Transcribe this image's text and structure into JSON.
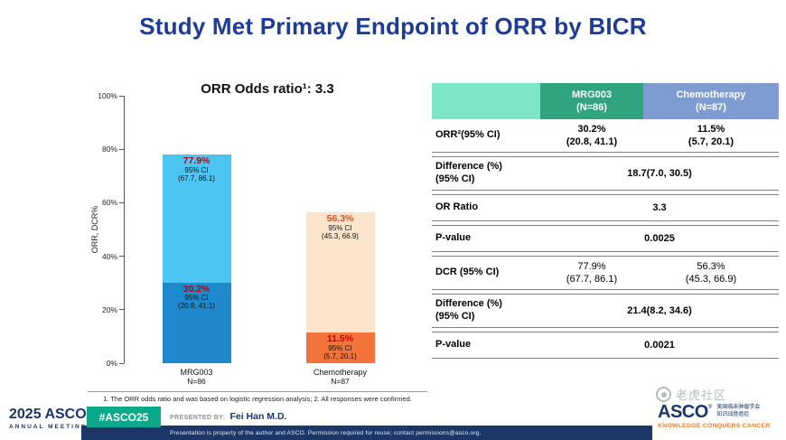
{
  "title": "Study Met Primary Endpoint of ORR by BICR",
  "colors": {
    "title_blue": "#1E3C96",
    "navy": "#1B3667",
    "hashtag_green": "#0CA88A",
    "tagline_orange": "#EE7E23",
    "table_header_label_bg": "#7CE6C6",
    "table_header_mrg003_bg": "#2FA47E",
    "table_header_chemo_bg": "#7E9BD2",
    "pct_red": "#C00000"
  },
  "chart_data": {
    "type": "bar",
    "stacked": true,
    "title": "ORR Odds ratio¹: 3.3",
    "ylabel": "ORR, DCR%",
    "ylim": [
      0,
      100
    ],
    "yticks": [
      "0%",
      "20%",
      "40%",
      "60%",
      "80%",
      "100%"
    ],
    "footnote": "1. The ORR odds ratio and was based on logistic regression analysis; 2. All responses were confirmed.",
    "bars": [
      {
        "category": "MRG003",
        "n_label": "N=86",
        "segments": [
          {
            "name": "ORR",
            "top_value": 30.2,
            "color": "#1E89CC",
            "pct_label": "30.2%",
            "pct_color": "#C00000",
            "ci_label": "95% CI",
            "ci_range": "(20.8, 41.1)"
          },
          {
            "name": "DCR",
            "top_value": 77.9,
            "color": "#4DC5F2",
            "pct_label": "77.9%",
            "pct_color": "#C00000",
            "ci_label": "95% CI",
            "ci_range": "(67.7, 86.1)"
          }
        ]
      },
      {
        "category": "Chemotherapy",
        "n_label": "N=87",
        "segments": [
          {
            "name": "ORR",
            "top_value": 11.5,
            "color": "#F2743B",
            "pct_label": "11.5%",
            "pct_color": "#C00000",
            "ci_label": "95% CI",
            "ci_range": "(5.7, 20.1)"
          },
          {
            "name": "DCR",
            "top_value": 56.3,
            "color": "#FBE4CC",
            "pct_label": "56.3%",
            "pct_color": "#D2512A",
            "ci_label": "95% CI",
            "ci_range": "(45.3, 66.9)"
          }
        ]
      }
    ]
  },
  "table": {
    "header": {
      "col2_line1": "MRG003",
      "col2_line2": "(N=86)",
      "col3_line1": "Chemotherapy",
      "col3_line2": "(N=87)"
    },
    "rows": [
      {
        "label": [
          "ORR²(95% CI)"
        ],
        "values": [
          [
            "30.2%",
            "(20.8, 41.1)"
          ],
          [
            "11.5%",
            "(5.7, 20.1)"
          ]
        ],
        "bold": true
      },
      {
        "label": [
          "Difference (%)",
          "(95% CI)"
        ],
        "span_value": [
          "18.7(7.0, 30.5)"
        ],
        "bold": true
      },
      {
        "label": [
          "OR Ratio"
        ],
        "span_value": [
          "3.3"
        ],
        "bold": true
      },
      {
        "label": [
          "P-value"
        ],
        "span_value": [
          "0.0025"
        ],
        "bold": true
      },
      {
        "label": [
          "DCR (95% CI)"
        ],
        "values": [
          [
            "77.9%",
            "(67.7, 86.1)"
          ],
          [
            "56.3%",
            "(45.3, 66.9)"
          ]
        ],
        "bold": false
      },
      {
        "label": [
          "Difference (%)",
          "(95% CI)"
        ],
        "span_value": [
          "21.4(8.2, 34.6)"
        ],
        "bold": true
      },
      {
        "label": [
          "P-value"
        ],
        "span_value": [
          "0.0021"
        ],
        "bold": true
      }
    ]
  },
  "footer": {
    "meeting_year": "2025",
    "meeting_word": "ASCO",
    "meeting_sub": "ANNUAL MEETING",
    "hashtag": "#ASCO25",
    "presented_by_label": "PRESENTED BY:",
    "presenter": "Fei Han M.D.",
    "disclaimer": "Presentation is property of the author and ASCO. Permission required for reuse; contact permissions@asco.org.",
    "asco_wordmark": "ASCO",
    "asco_reg": "®",
    "asco_cn_line1": "美国临床肿瘤学会",
    "asco_cn_line2": "知识战胜癌症",
    "asco_tagline": "KNOWLEDGE CONQUERS CANCER",
    "watermark_text": "老虎社区"
  }
}
